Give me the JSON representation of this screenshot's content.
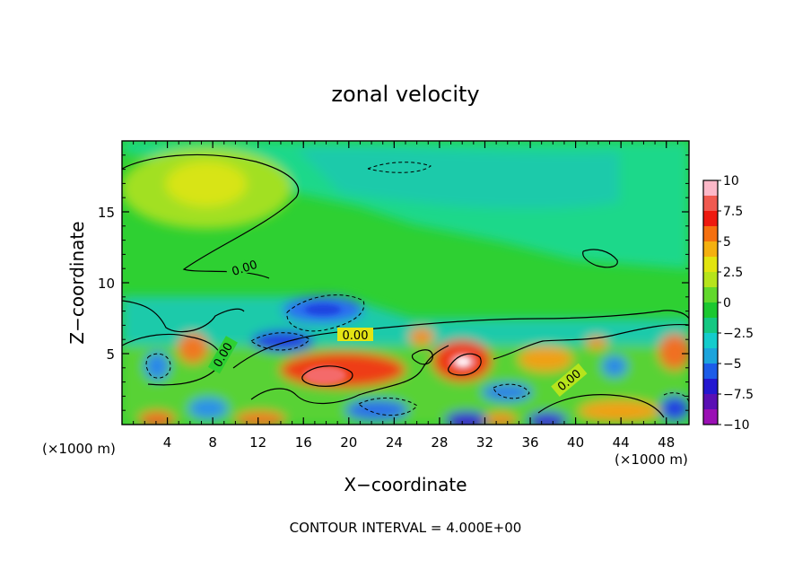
{
  "chart_data": {
    "type": "heatmap",
    "title": "zonal velocity",
    "xlabel": "X−coordinate",
    "ylabel": "Z−coordinate",
    "x_unit_left": "(×1000 m)",
    "x_unit_right": "(×1000 m)",
    "footer": "CONTOUR INTERVAL = 4.000E+00",
    "xlim": [
      0,
      50
    ],
    "ylim": [
      0,
      20
    ],
    "x_ticks": [
      "4",
      "8",
      "12",
      "16",
      "20",
      "24",
      "28",
      "32",
      "36",
      "40",
      "44",
      "48"
    ],
    "y_ticks": [
      "5",
      "10",
      "15"
    ],
    "colorbar": {
      "range": [
        -10,
        10
      ],
      "tick_labels": [
        "10",
        "7.5",
        "5",
        "2.5",
        "0",
        "−2.5",
        "−5",
        "−7.5",
        "−10"
      ],
      "colors": [
        "#fcb8c8",
        "#f05a50",
        "#ee1a10",
        "#f57010",
        "#f4b010",
        "#e2e410",
        "#b6e41c",
        "#62d82c",
        "#1cc830",
        "#14c882",
        "#14cccc",
        "#1ca4dc",
        "#1c5ce8",
        "#2418d0",
        "#5a10b4",
        "#9a10b4"
      ]
    },
    "contour_labels": [
      "0.00",
      "0.00",
      "0.00",
      "0.00"
    ],
    "contour_interval": 4.0
  }
}
